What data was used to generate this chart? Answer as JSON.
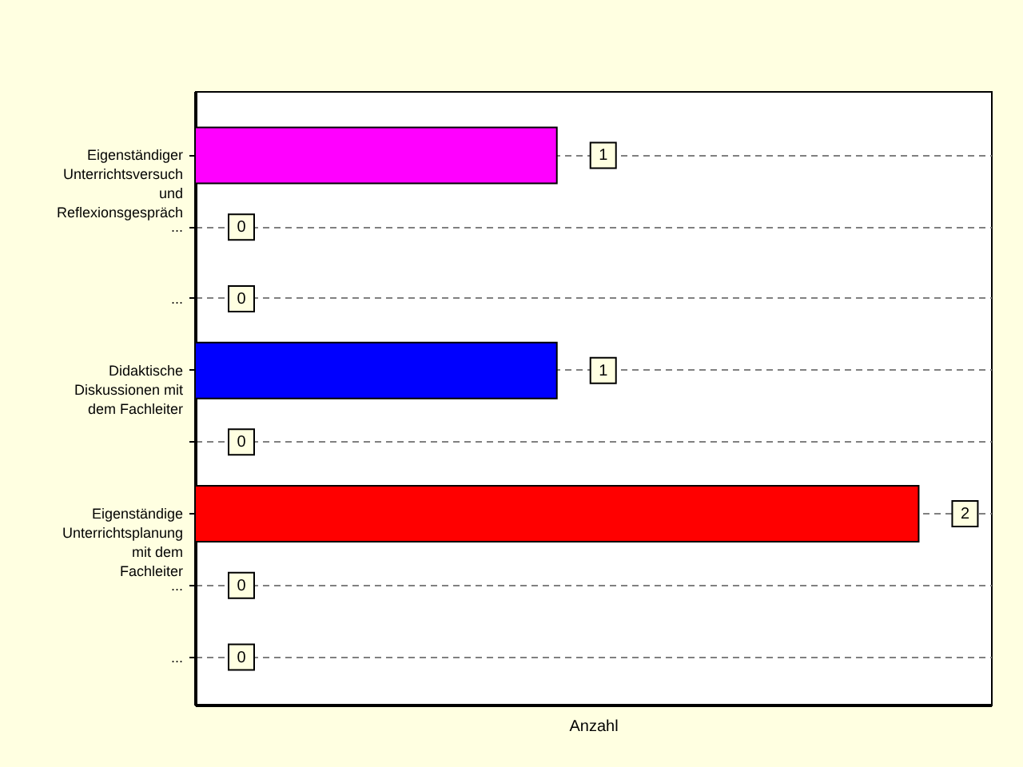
{
  "chart_data": {
    "type": "bar",
    "orientation": "horizontal",
    "categories": [
      "Eigenständiger\nUnterrichtsversuch\nund\nReflexionsgespräch",
      "...",
      "...",
      "Didaktische\nDiskussionen mit\ndem Fachleiter",
      null,
      "Eigenständige\nUnterrichtsplanung\nmit dem\nFachleiter",
      "...",
      "..."
    ],
    "values": [
      1,
      0,
      0,
      1,
      0,
      2,
      0,
      0
    ],
    "colors": [
      "#ff00ff",
      null,
      null,
      "#0000ff",
      null,
      "#ff0000",
      null,
      null
    ],
    "xlabel": "Anzahl",
    "xlim": [
      0,
      2.2
    ],
    "grid": "y",
    "data_labels": true,
    "tick_labels": "y"
  }
}
